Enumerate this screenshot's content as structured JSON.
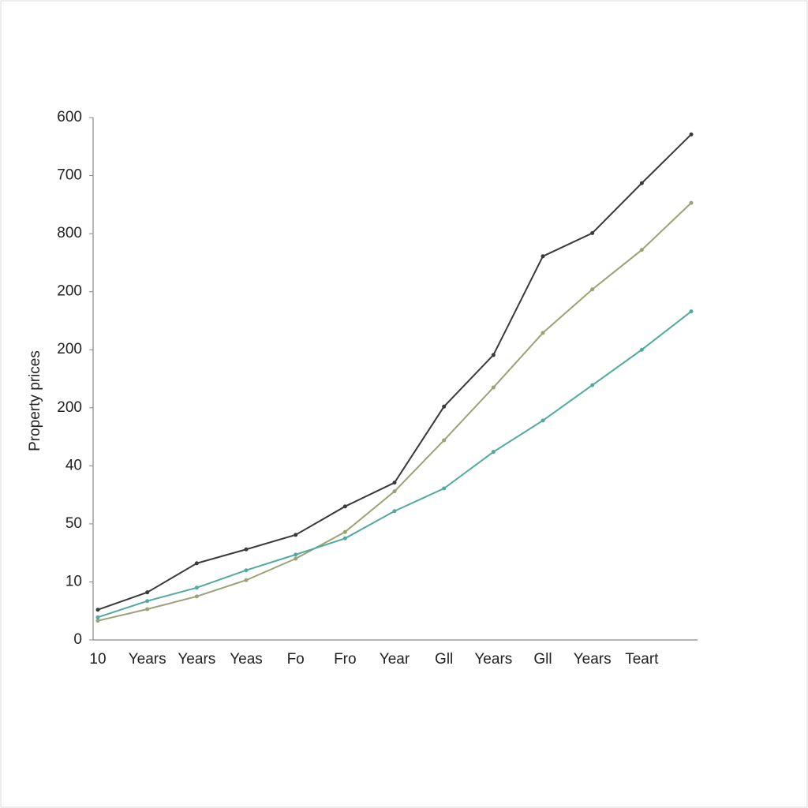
{
  "chart_data": {
    "type": "line",
    "y_label": "Property prices",
    "categories": [
      "10",
      "Years",
      "Years",
      "Yeas",
      "Fo",
      "Fro",
      "Year",
      "Gll",
      "Years",
      "Gll",
      "Years",
      "Teart",
      null
    ],
    "series": [
      {
        "color": "#3a3a3a",
        "values": [
          0.52,
          0.82,
          1.32,
          1.56,
          1.81,
          2.3,
          2.71,
          4.02,
          4.91,
          6.61,
          7.01,
          7.87,
          8.71
        ]
      },
      {
        "color": "#9ca276",
        "values": [
          0.33,
          0.53,
          0.75,
          1.03,
          1.4,
          1.86,
          2.56,
          3.44,
          4.35,
          5.29,
          6.04,
          6.72,
          7.53
        ]
      },
      {
        "color": "#52a99d",
        "values": [
          0.39,
          0.67,
          0.9,
          1.2,
          1.47,
          1.75,
          2.22,
          2.61,
          3.24,
          3.78,
          4.39,
          5.0,
          5.66
        ]
      }
    ],
    "ylim": [
      0,
      9
    ],
    "yticks": [
      {
        "value": 0,
        "label": "0"
      },
      {
        "value": 1,
        "label": "10"
      },
      {
        "value": 2,
        "label": "50"
      },
      {
        "value": 3,
        "label": "40"
      },
      {
        "value": 4,
        "label": "200"
      },
      {
        "value": 5,
        "label": "200"
      },
      {
        "value": 6,
        "label": "200"
      },
      {
        "value": 7,
        "label": "800"
      },
      {
        "value": 8,
        "label": "700"
      },
      {
        "value": 9,
        "label": "600"
      }
    ],
    "grid": false
  }
}
